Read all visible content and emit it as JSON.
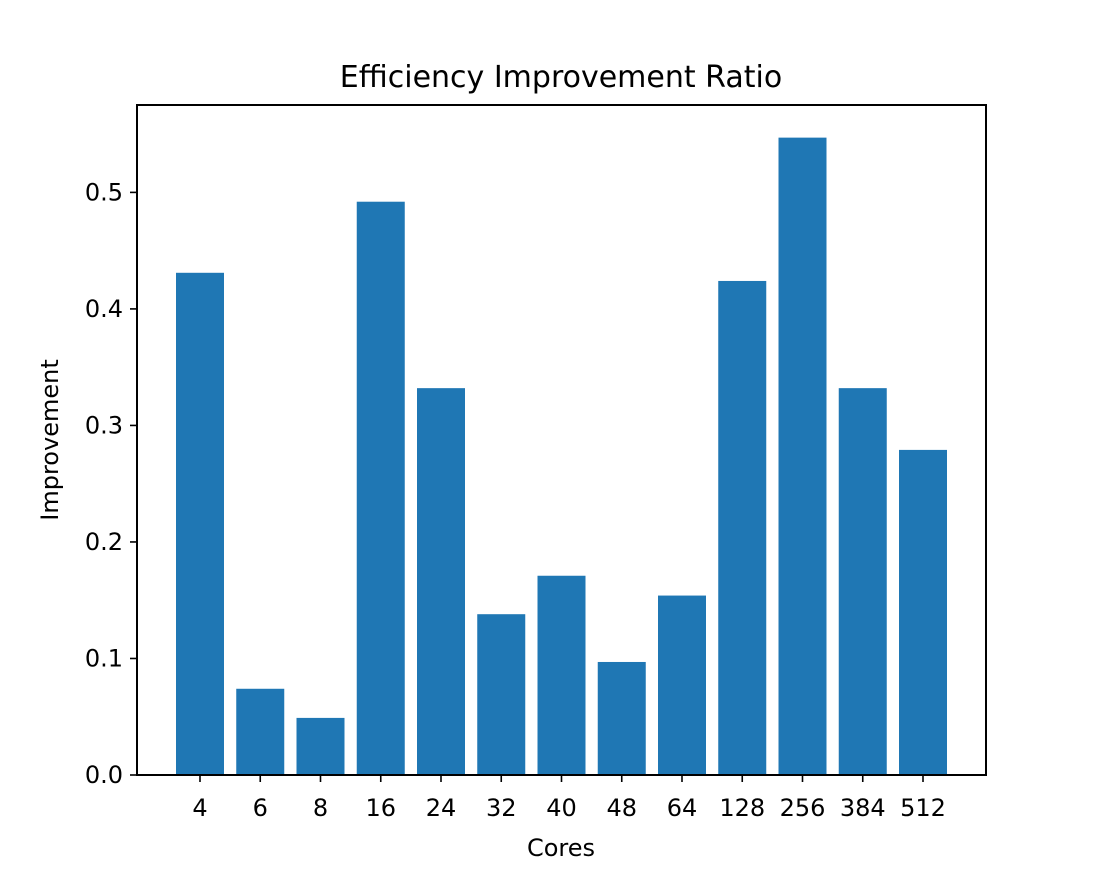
{
  "chart_data": {
    "type": "bar",
    "title": "Efficiency Improvement Ratio",
    "xlabel": "Cores",
    "ylabel": "Improvement",
    "categories": [
      "4",
      "6",
      "8",
      "16",
      "24",
      "32",
      "40",
      "48",
      "64",
      "128",
      "256",
      "384",
      "512"
    ],
    "values": [
      0.431,
      0.074,
      0.049,
      0.492,
      0.332,
      0.138,
      0.171,
      0.097,
      0.154,
      0.424,
      0.547,
      0.332,
      0.279
    ],
    "ylim": [
      0,
      0.575
    ],
    "yticks": [
      0.0,
      0.1,
      0.2,
      0.3,
      0.4,
      0.5
    ],
    "ytick_labels": [
      "0.0",
      "0.1",
      "0.2",
      "0.3",
      "0.4",
      "0.5"
    ],
    "color": "#1f77b4",
    "grid": false,
    "legend": "none"
  }
}
